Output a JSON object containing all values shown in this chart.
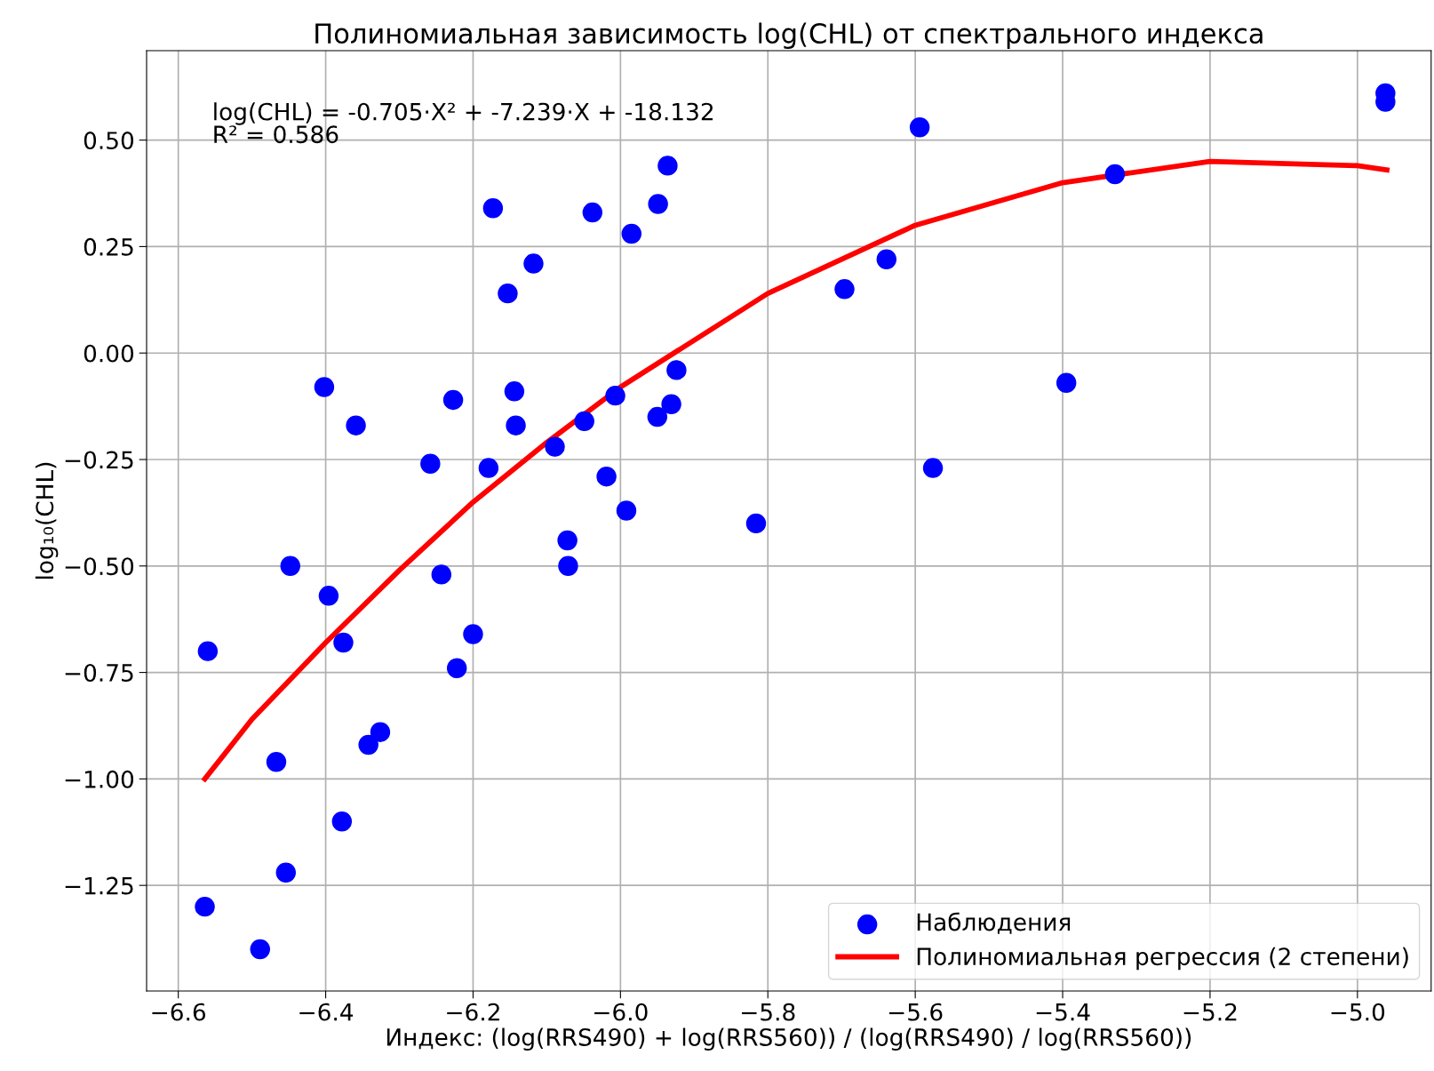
{
  "chart_data": {
    "type": "scatter",
    "title": "Полиномиальная зависимость log(CHL) от спектрального индекса",
    "xlabel": "Индекс: (log(RRS490) + log(RRS560)) / (log(RRS490) / log(RRS560))",
    "ylabel": "log₁₀(CHL)",
    "annotations": [
      "log(CHL) = -0.705·X² + -7.239·X + -18.132\nR² = 0.586"
    ],
    "series": [
      {
        "name": "Наблюдения",
        "color": "#0000ff",
        "marker": "circle",
        "x": [
          -6.56,
          -6.564,
          -6.489,
          -6.467,
          -6.454,
          -6.448,
          -6.402,
          -6.396,
          -6.376,
          -6.378,
          -6.359,
          -6.342,
          -6.326,
          -6.258,
          -6.243,
          -6.227,
          -6.222,
          -6.2,
          -6.179,
          -6.173,
          -6.153,
          -6.144,
          -6.142,
          -6.118,
          -6.089,
          -6.072,
          -6.071,
          -6.049,
          -6.038,
          -6.019,
          -6.007,
          -5.992,
          -5.985,
          -5.95,
          -5.949,
          -5.936,
          -5.931,
          -5.924,
          -5.816,
          -5.696,
          -5.639,
          -5.594,
          -5.576,
          -5.395,
          -5.329,
          -4.962,
          -4.962
        ],
        "values": [
          -0.7,
          -1.3,
          -1.4,
          -0.96,
          -1.22,
          -0.5,
          -0.08,
          -0.57,
          -0.68,
          -1.1,
          -0.17,
          -0.92,
          -0.89,
          -0.26,
          -0.52,
          -0.11,
          -0.74,
          -0.66,
          -0.27,
          0.34,
          0.14,
          -0.09,
          -0.17,
          0.21,
          -0.22,
          -0.44,
          -0.5,
          -0.16,
          0.33,
          -0.29,
          -0.1,
          -0.37,
          0.28,
          -0.15,
          0.35,
          0.44,
          -0.12,
          -0.04,
          -0.4,
          0.15,
          0.22,
          0.53,
          -0.27,
          -0.07,
          0.42,
          0.61,
          0.59
        ]
      },
      {
        "name": "Полиномиальная регрессия (2 степени)",
        "type": "line",
        "color": "#ff0000",
        "line_style": "solid",
        "x": [
          -6.564,
          -6.5,
          -6.4,
          -6.3,
          -6.2,
          -6.1,
          -6.0,
          -5.8,
          -5.6,
          -5.4,
          -5.2,
          -5.0,
          -4.96
        ],
        "values": [
          -1.0,
          -0.86,
          -0.68,
          -0.51,
          -0.35,
          -0.21,
          -0.08,
          0.14,
          0.3,
          0.4,
          0.45,
          0.44,
          0.43
        ]
      }
    ],
    "xlim": [
      -6.643,
      -4.9
    ],
    "ylim": [
      -1.498,
      0.71
    ],
    "xticks": [
      {
        "value": -6.6,
        "label": "−6.6"
      },
      {
        "value": -6.4,
        "label": "−6.4"
      },
      {
        "value": -6.2,
        "label": "−6.2"
      },
      {
        "value": -6.0,
        "label": "−6.0"
      },
      {
        "value": -5.8,
        "label": "−5.8"
      },
      {
        "value": -5.6,
        "label": "−5.6"
      },
      {
        "value": -5.4,
        "label": "−5.4"
      },
      {
        "value": -5.2,
        "label": "−5.2"
      },
      {
        "value": -5.0,
        "label": "−5.0"
      }
    ],
    "yticks": [
      {
        "value": -1.25,
        "label": "−1.25"
      },
      {
        "value": -1.0,
        "label": "−1.00"
      },
      {
        "value": -0.75,
        "label": "−0.75"
      },
      {
        "value": -0.5,
        "label": "−0.50"
      },
      {
        "value": -0.25,
        "label": "−0.25"
      },
      {
        "value": 0,
        "label": "0.00"
      },
      {
        "value": 0.25,
        "label": "0.25"
      },
      {
        "value": 0.5,
        "label": "0.50"
      }
    ],
    "grid": true,
    "legend": "lower right"
  }
}
